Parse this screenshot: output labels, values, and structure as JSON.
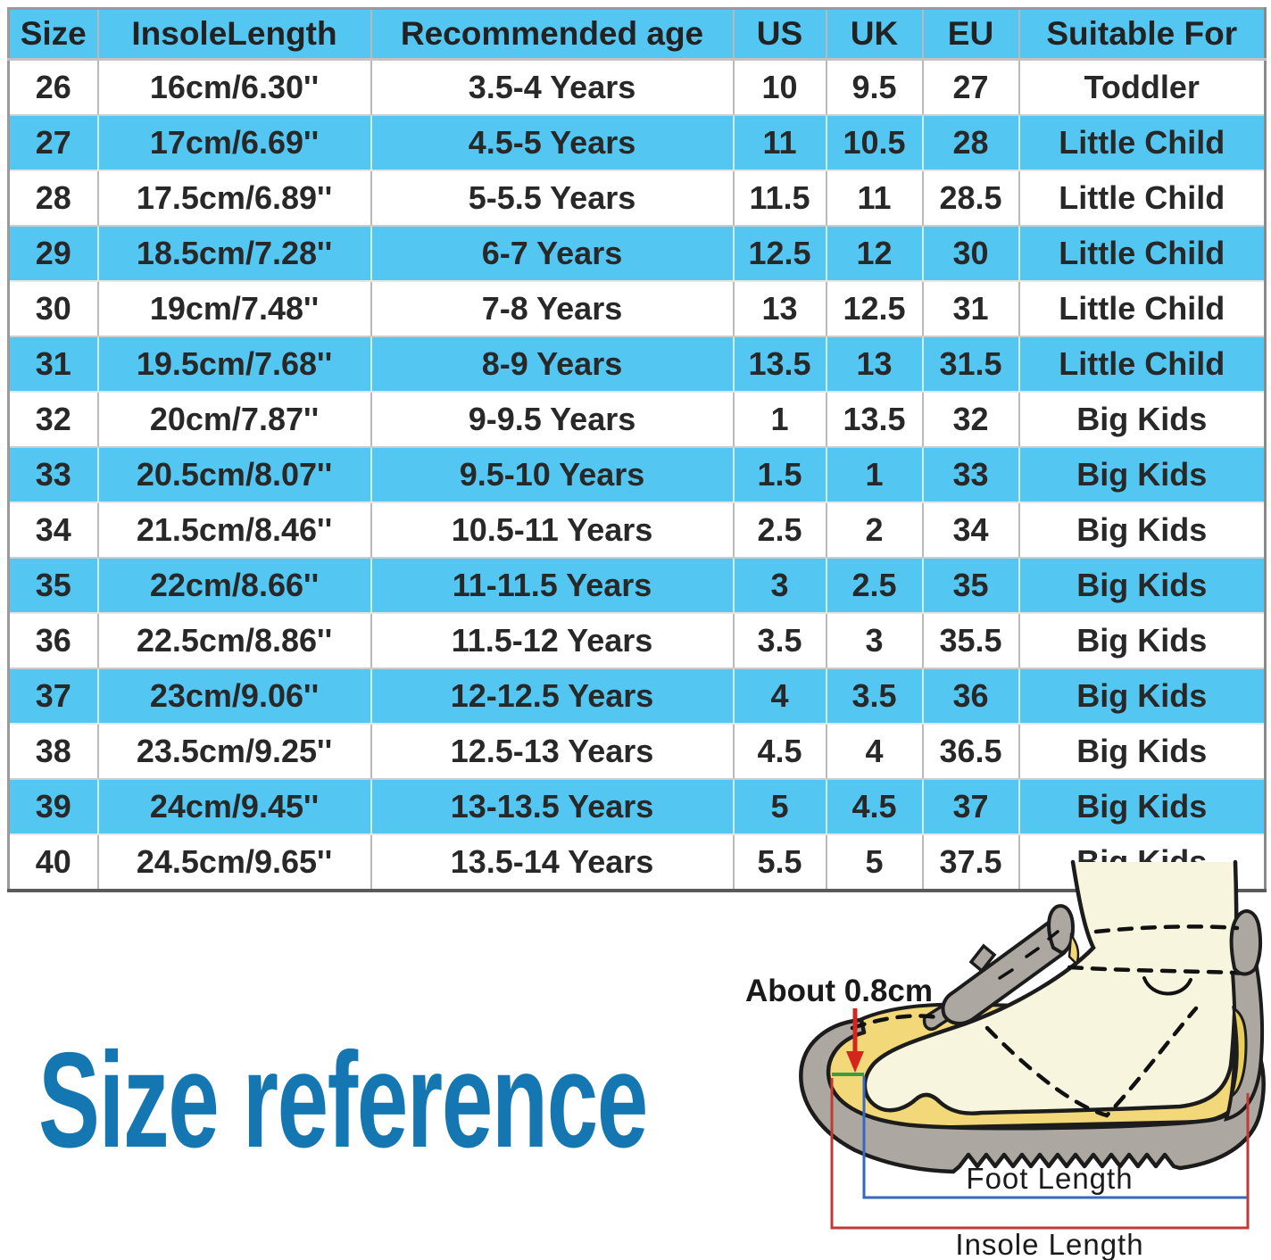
{
  "chart_data": {
    "type": "table",
    "title": "Size reference",
    "columns": [
      "Size",
      "InsoleLength",
      "Recommended age",
      "US",
      "UK",
      "EU",
      "Suitable For"
    ],
    "rows": [
      [
        "26",
        "16cm/6.30''",
        "3.5-4 Years",
        "10",
        "9.5",
        "27",
        "Toddler"
      ],
      [
        "27",
        "17cm/6.69''",
        "4.5-5 Years",
        "11",
        "10.5",
        "28",
        "Little Child"
      ],
      [
        "28",
        "17.5cm/6.89''",
        "5-5.5 Years",
        "11.5",
        "11",
        "28.5",
        "Little Child"
      ],
      [
        "29",
        "18.5cm/7.28''",
        "6-7 Years",
        "12.5",
        "12",
        "30",
        "Little Child"
      ],
      [
        "30",
        "19cm/7.48''",
        "7-8 Years",
        "13",
        "12.5",
        "31",
        "Little Child"
      ],
      [
        "31",
        "19.5cm/7.68''",
        "8-9 Years",
        "13.5",
        "13",
        "31.5",
        "Little Child"
      ],
      [
        "32",
        "20cm/7.87''",
        "9-9.5 Years",
        "1",
        "13.5",
        "32",
        "Big Kids"
      ],
      [
        "33",
        "20.5cm/8.07''",
        "9.5-10 Years",
        "1.5",
        "1",
        "33",
        "Big Kids"
      ],
      [
        "34",
        "21.5cm/8.46''",
        "10.5-11 Years",
        "2.5",
        "2",
        "34",
        "Big Kids"
      ],
      [
        "35",
        "22cm/8.66''",
        "11-11.5 Years",
        "3",
        "2.5",
        "35",
        "Big Kids"
      ],
      [
        "36",
        "22.5cm/8.86''",
        "11.5-12 Years",
        "3.5",
        "3",
        "35.5",
        "Big Kids"
      ],
      [
        "37",
        "23cm/9.06''",
        "12-12.5 Years",
        "4",
        "3.5",
        "36",
        "Big Kids"
      ],
      [
        "38",
        "23.5cm/9.25''",
        "12.5-13 Years",
        "4.5",
        "4",
        "36.5",
        "Big Kids"
      ],
      [
        "39",
        "24cm/9.45''",
        "13-13.5 Years",
        "5",
        "4.5",
        "37",
        "Big Kids"
      ],
      [
        "40",
        "24.5cm/9.65''",
        "13.5-14 Years",
        "5.5",
        "5",
        "37.5",
        "Big Kids"
      ]
    ],
    "shaded_row_indices": [
      1,
      3,
      5,
      7,
      9,
      11,
      13
    ],
    "layout_hint": "header row and alternating data rows filled sky-blue"
  },
  "title": {
    "text": "Size reference"
  },
  "annotations": {
    "gap_label": "About 0.8cm",
    "foot_length_label": "Foot Length",
    "insole_length_label": "Insole Length"
  },
  "colors": {
    "accent_cyan": "#53C6F1",
    "row_white": "#FFFFFF",
    "table_text": "#282828",
    "title_blue": "#1577B2",
    "foot_length_line_blue": "#3568BE",
    "insole_length_line_red": "#C23A35",
    "arrow_red": "#D6251D",
    "gap_line_green": "#3E9C40",
    "insole_yellow": "#F2D879",
    "foot_cream": "#F8F5DE",
    "shoe_gray": "#ACA8A1",
    "outline_black": "#1c1c1c"
  }
}
